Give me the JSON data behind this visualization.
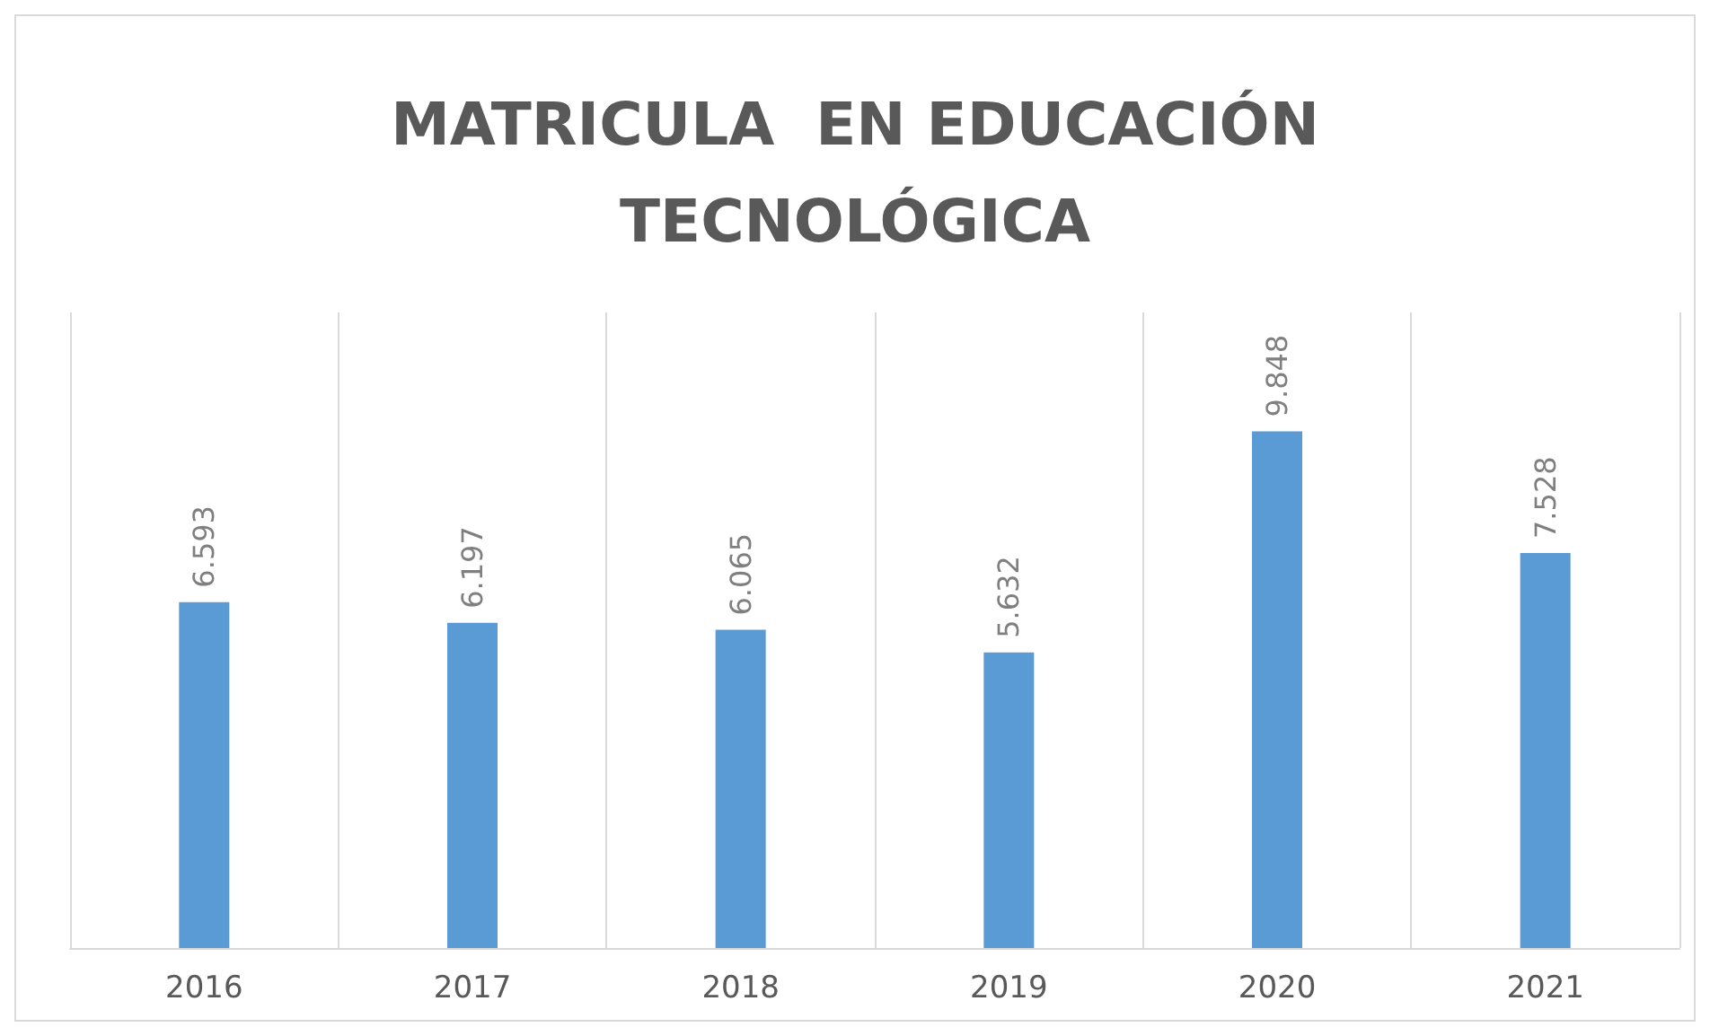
{
  "chart_data": {
    "type": "bar",
    "title": "MATRICULA  EN EDUCACIÓN\nTECNOLÓGICA",
    "categories": [
      "2016",
      "2017",
      "2018",
      "2019",
      "2020",
      "2021"
    ],
    "values": [
      6593,
      6197,
      6065,
      5632,
      9848,
      7528
    ],
    "value_labels": [
      "6.593",
      "6.197",
      "6.065",
      "5.632",
      "9.848",
      "7.528"
    ],
    "color": "#5b9bd5",
    "grid": "x",
    "tick_labels": "x"
  }
}
